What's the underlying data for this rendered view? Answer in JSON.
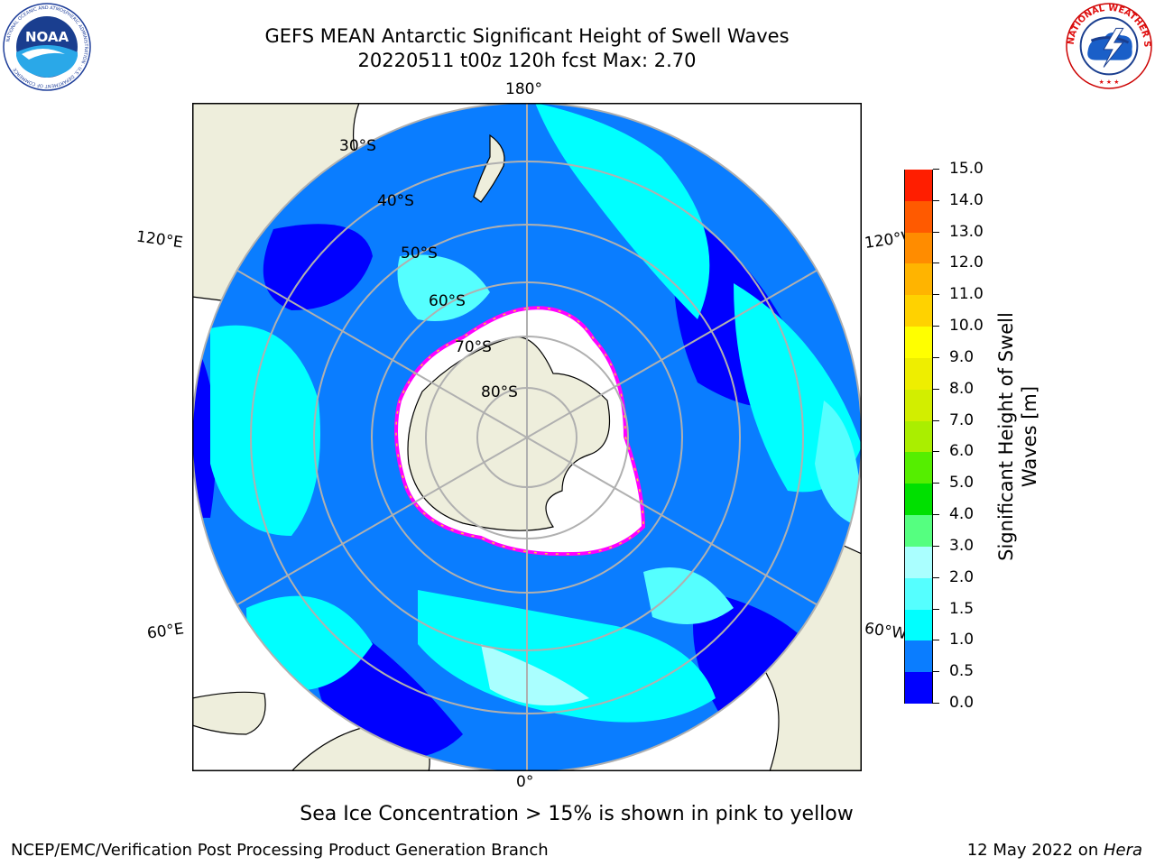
{
  "title": {
    "line1": "GEFS MEAN Antarctic Significant Height of Swell Waves",
    "line2": "20220511 t00z 120h fcst   Max: 2.70"
  },
  "logos": {
    "left": {
      "icon": "noaa-logo",
      "text": "NOAA",
      "ring_text": "NATIONAL OCEANIC AND ATMOSPHERIC ADMINISTRATION · U.S. DEPARTMENT OF COMMERCE"
    },
    "right": {
      "icon": "nws-logo",
      "ring_text": "NATIONAL WEATHER SERVICE"
    }
  },
  "map": {
    "projection": "south polar stereographic",
    "longitude_labels": {
      "top": "180°",
      "bottom": "0°",
      "left_upper": "120°E",
      "left_lower": "60°E",
      "right_upper": "120°W",
      "right_lower": "60°W"
    },
    "latitude_labels": [
      "30°S",
      "40°S",
      "50°S",
      "60°S",
      "70°S",
      "80°S"
    ],
    "colors": {
      "land": "#eeeedc",
      "coast": "#000000",
      "grid": "#b0b0b0",
      "ice": "#ffffff",
      "ice_edge": [
        "#ff00ff",
        "#ff44cc",
        "#ffcc33"
      ]
    }
  },
  "colorbar": {
    "label": "Significant Height of Swell Waves [m]",
    "ticks": [
      "0.0",
      "0.5",
      "1.0",
      "1.5",
      "2.0",
      "3.0",
      "4.0",
      "5.0",
      "6.0",
      "7.0",
      "8.0",
      "9.0",
      "10.0",
      "11.0",
      "12.0",
      "13.0",
      "14.0",
      "15.0"
    ],
    "colors": [
      "#0000ff",
      "#0a7dff",
      "#00ffff",
      "#55ffff",
      "#aaffff",
      "#55ff80",
      "#00e000",
      "#55ee00",
      "#aaee00",
      "#d2ee00",
      "#eeee00",
      "#ffff00",
      "#ffd200",
      "#ffb400",
      "#ff8c00",
      "#ff5a00",
      "#ff1e00"
    ]
  },
  "notes": {
    "ice": "Sea Ice Concentration > 15% is shown in pink to yellow"
  },
  "footer": {
    "left": "NCEP/EMC/Verification Post Processing Product Generation Branch",
    "date": "12 May 2022 on ",
    "machine": "Hera"
  }
}
